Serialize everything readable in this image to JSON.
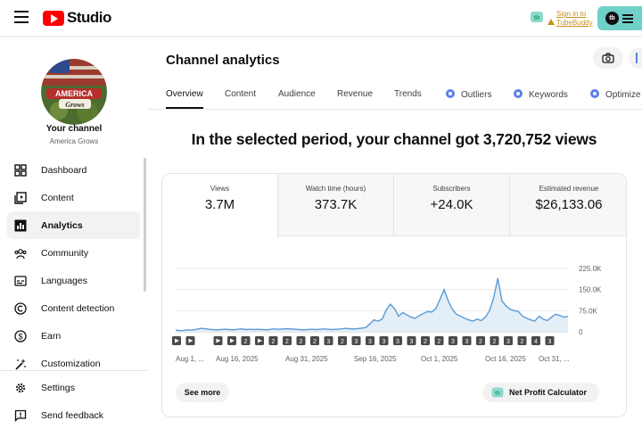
{
  "app": {
    "logo_text": "Studio"
  },
  "topbar": {
    "tubebuddy_link_line1": "Sign in to",
    "tubebuddy_link_line2": "TubeBuddy",
    "profile_badge": "tb"
  },
  "channel": {
    "your_channel_label": "Your channel",
    "name": "America Grows",
    "avatar_text": "America Grows"
  },
  "sidebar": {
    "items": [
      {
        "label": "Dashboard",
        "icon": "dashboard-icon"
      },
      {
        "label": "Content",
        "icon": "content-icon"
      },
      {
        "label": "Analytics",
        "icon": "analytics-icon",
        "active": true
      },
      {
        "label": "Community",
        "icon": "community-icon"
      },
      {
        "label": "Languages",
        "icon": "subtitles-icon"
      },
      {
        "label": "Content detection",
        "icon": "copyright-icon"
      },
      {
        "label": "Earn",
        "icon": "dollar-icon"
      },
      {
        "label": "Customization",
        "icon": "magic-wand-icon"
      }
    ],
    "bottom": [
      {
        "label": "Settings",
        "icon": "gear-icon"
      },
      {
        "label": "Send feedback",
        "icon": "feedback-icon"
      }
    ]
  },
  "main": {
    "title": "Channel analytics",
    "tabs": [
      "Overview",
      "Content",
      "Audience",
      "Revenue",
      "Trends",
      "Outliers",
      "Keywords",
      "Optimize"
    ],
    "headline": "In the selected period, your channel got 3,720,752 views",
    "metrics": [
      {
        "label": "Views",
        "value": "3.7M"
      },
      {
        "label": "Watch time (hours)",
        "value": "373.7K"
      },
      {
        "label": "Subscribers",
        "value": "+24.0K"
      },
      {
        "label": "Estimated revenue",
        "value": "$26,133.06"
      }
    ],
    "see_more": "See more",
    "net_profit": "Net Profit Calculator"
  },
  "colors": {
    "accent": "#5b9bd5",
    "fill": "#e3eef7",
    "tubebuddy": "#6fd1c8",
    "youtube_red": "#ff0000"
  },
  "chart_data": {
    "type": "area",
    "ylim": [
      0,
      225000
    ],
    "yticks": [
      "225.0K",
      "150.0K",
      "75.0K",
      "0"
    ],
    "xticks": [
      "Aug 1, ...",
      "Aug 16, 2025",
      "Aug 31, 2025",
      "Sep 16, 2025",
      "Oct 1, 2025",
      "Oct 16, 2025",
      "Oct 31, ..."
    ],
    "markers": [
      "play",
      "play",
      "",
      "play",
      "play",
      "2",
      "play",
      "2",
      "2",
      "2",
      "2",
      "3",
      "2",
      "3",
      "3",
      "3",
      "3",
      "3",
      "2",
      "2",
      "3",
      "3",
      "2",
      "2",
      "3",
      "2",
      "4",
      "3"
    ],
    "series": [
      {
        "values": [
          6000,
          4000,
          5000,
          7000,
          6000,
          9000,
          12000,
          11000,
          9000,
          8000,
          7000,
          8000,
          9000,
          8000,
          7000,
          9000,
          10000,
          8000,
          9000,
          8000,
          9000,
          8000,
          7000,
          9000,
          10000,
          9000,
          10000,
          11000,
          10000,
          9000,
          8000,
          7000,
          8000,
          9000,
          8000,
          9000,
          10000,
          9000,
          8000,
          9000,
          10000,
          12000,
          11000,
          10000,
          11000,
          13000,
          15000,
          28000,
          42000,
          38000,
          45000,
          78000,
          98000,
          82000,
          55000,
          68000,
          60000,
          52000,
          48000,
          58000,
          65000,
          72000,
          70000,
          82000,
          115000,
          150000,
          110000,
          80000,
          62000,
          55000,
          48000,
          42000,
          38000,
          45000,
          40000,
          52000,
          75000,
          120000,
          190000,
          110000,
          92000,
          80000,
          75000,
          72000,
          55000,
          48000,
          42000,
          38000,
          55000,
          45000,
          40000,
          52000,
          62000,
          58000,
          52000,
          55000
        ]
      }
    ]
  }
}
